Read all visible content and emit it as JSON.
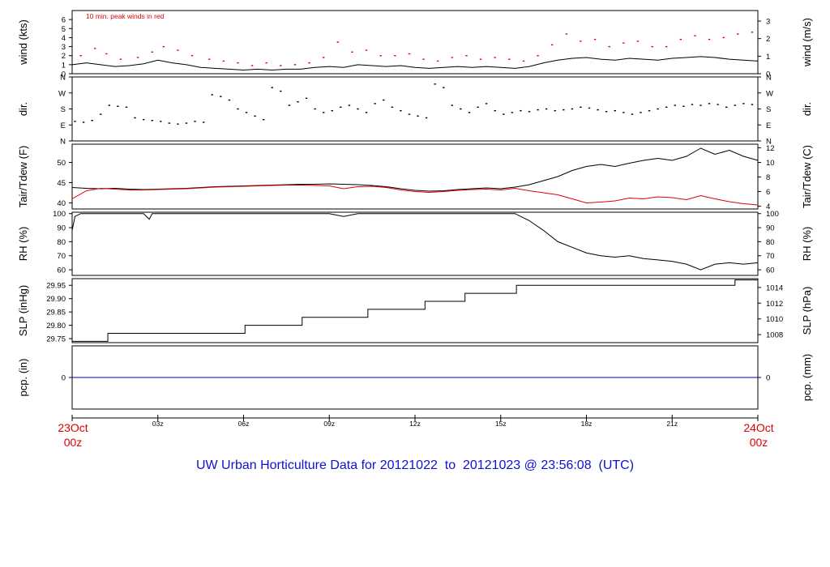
{
  "colors": {
    "frame": "#000000",
    "temp": "#000000",
    "dew": "#e00000",
    "peak": "#e00000",
    "precip": "#0000cc",
    "title": "#1010d0",
    "datelabel": "#e00000"
  },
  "title": {
    "text": "UW Urban Horticulture Data for 20121022  to  20121023 @ 23:56:08  (UTC)"
  },
  "x_axis": {
    "start_label_line1": "23Oct",
    "start_label_line2": "00z",
    "end_label_line1": "24Oct",
    "end_label_line2": "00z",
    "ticks": [
      "03z",
      "06z",
      "09z",
      "12z",
      "15z",
      "18z",
      "21z"
    ],
    "tick_hours": [
      3,
      6,
      9,
      12,
      15,
      18,
      21
    ],
    "range_hours": [
      0,
      24
    ]
  },
  "chart_data": [
    {
      "type": "line",
      "panel": "wind",
      "ylabel_left": "wind (kts)",
      "ylabel_right": "wind (m/s)",
      "annotation": "10 min. peak winds in red",
      "yticks_left": [
        "0",
        "1",
        "2",
        "3",
        "4",
        "5",
        "6"
      ],
      "ytick_values_left": [
        0,
        1,
        2,
        3,
        4,
        5,
        6
      ],
      "yticks_right": [
        "0",
        "1",
        "2",
        "3"
      ],
      "ytick_values_right_in_left_units": [
        0,
        1.94,
        3.89,
        5.83
      ],
      "ylim": [
        0,
        7
      ],
      "series": [
        {
          "style": "line",
          "x": [
            0,
            0.5,
            1,
            1.5,
            2,
            2.5,
            3,
            3.5,
            4,
            4.5,
            5,
            5.5,
            6,
            6.5,
            7,
            7.5,
            8,
            8.5,
            9,
            9.5,
            10,
            10.5,
            11,
            11.5,
            12,
            12.5,
            13,
            13.5,
            14,
            14.5,
            15,
            15.5,
            16,
            16.5,
            17,
            17.5,
            18,
            18.5,
            19,
            19.5,
            20,
            20.5,
            21,
            21.5,
            22,
            22.5,
            23,
            23.5,
            24
          ],
          "values": [
            1.0,
            1.2,
            1.0,
            0.8,
            0.9,
            1.1,
            1.5,
            1.2,
            1.0,
            0.7,
            0.6,
            0.5,
            0.4,
            0.5,
            0.4,
            0.5,
            0.5,
            0.7,
            0.8,
            0.7,
            1.0,
            0.9,
            0.8,
            0.9,
            0.7,
            0.6,
            0.7,
            0.8,
            0.7,
            0.8,
            0.7,
            0.6,
            0.8,
            1.2,
            1.5,
            1.7,
            1.8,
            1.6,
            1.5,
            1.7,
            1.6,
            1.5,
            1.7,
            1.8,
            1.9,
            1.8,
            1.6,
            1.5,
            1.4
          ]
        },
        {
          "style": "dots",
          "x": [
            0.3,
            0.8,
            1.2,
            1.7,
            2.3,
            2.8,
            3.2,
            3.7,
            4.2,
            4.8,
            5.3,
            5.8,
            6.3,
            6.8,
            7.3,
            7.8,
            8.3,
            8.8,
            9.3,
            9.8,
            10.3,
            10.8,
            11.3,
            11.8,
            12.3,
            12.8,
            13.3,
            13.8,
            14.3,
            14.8,
            15.3,
            15.8,
            16.3,
            16.8,
            17.3,
            17.8,
            18.3,
            18.8,
            19.3,
            19.8,
            20.3,
            20.8,
            21.3,
            21.8,
            22.3,
            22.8,
            23.3,
            23.8
          ],
          "values": [
            2.0,
            2.8,
            2.2,
            1.6,
            1.8,
            2.4,
            3.0,
            2.6,
            2.0,
            1.6,
            1.4,
            1.2,
            0.9,
            1.2,
            0.9,
            1.0,
            1.2,
            1.8,
            3.5,
            2.4,
            2.6,
            2.0,
            2.0,
            2.2,
            1.6,
            1.4,
            1.8,
            2.0,
            1.6,
            1.8,
            1.6,
            1.4,
            2.0,
            3.2,
            4.4,
            3.6,
            3.8,
            3.0,
            3.4,
            3.6,
            3.0,
            3.0,
            3.8,
            4.2,
            3.8,
            4.0,
            4.4,
            4.6
          ]
        }
      ]
    },
    {
      "type": "scatter",
      "panel": "direction",
      "ylabel_left": "dir.",
      "ylabel_right": "dir.",
      "yticks_left": [
        "N",
        "E",
        "S",
        "W",
        "N"
      ],
      "ytick_values_left": [
        0,
        90,
        180,
        270,
        360
      ],
      "yticks_right": [
        "N",
        "E",
        "S",
        "W",
        "N"
      ],
      "ylim": [
        0,
        360
      ],
      "x": [
        0.1,
        0.4,
        0.7,
        1.0,
        1.3,
        1.6,
        1.9,
        2.2,
        2.5,
        2.8,
        3.1,
        3.4,
        3.7,
        4.0,
        4.3,
        4.6,
        4.9,
        5.2,
        5.5,
        5.8,
        6.1,
        6.4,
        6.7,
        7.0,
        7.3,
        7.6,
        7.9,
        8.2,
        8.5,
        8.8,
        9.1,
        9.4,
        9.7,
        10.0,
        10.3,
        10.6,
        10.9,
        11.2,
        11.5,
        11.8,
        12.1,
        12.4,
        12.7,
        13.0,
        13.3,
        13.6,
        13.9,
        14.2,
        14.5,
        14.8,
        15.1,
        15.4,
        15.7,
        16.0,
        16.3,
        16.6,
        16.9,
        17.2,
        17.5,
        17.8,
        18.1,
        18.4,
        18.7,
        19.0,
        19.3,
        19.6,
        19.9,
        20.2,
        20.5,
        20.8,
        21.1,
        21.4,
        21.7,
        22.0,
        22.3,
        22.6,
        22.9,
        23.2,
        23.5,
        23.8
      ],
      "values": [
        110,
        105,
        115,
        150,
        200,
        195,
        190,
        130,
        120,
        115,
        110,
        100,
        95,
        100,
        110,
        105,
        260,
        250,
        230,
        180,
        160,
        140,
        120,
        300,
        280,
        200,
        220,
        240,
        180,
        160,
        170,
        190,
        200,
        180,
        160,
        210,
        230,
        190,
        170,
        150,
        140,
        130,
        320,
        300,
        200,
        180,
        160,
        190,
        210,
        170,
        150,
        160,
        170,
        165,
        175,
        180,
        170,
        175,
        180,
        190,
        185,
        175,
        165,
        170,
        160,
        150,
        160,
        170,
        180,
        190,
        200,
        195,
        205,
        200,
        210,
        205,
        190,
        200,
        210,
        205
      ]
    },
    {
      "type": "line",
      "panel": "temperature",
      "ylabel_left": "Tair/Tdew (F)",
      "ylabel_right": "Tair/Tdew (C)",
      "yticks_left": [
        "40",
        "45",
        "50"
      ],
      "ytick_values_left": [
        40,
        45,
        50
      ],
      "yticks_right": [
        "4",
        "6",
        "8",
        "10",
        "12"
      ],
      "ytick_values_right_in_left_units": [
        39.2,
        42.8,
        46.4,
        50.0,
        53.6
      ],
      "ylim": [
        38.5,
        54.5
      ],
      "series": [
        {
          "style": "line",
          "x": [
            0,
            0.5,
            1,
            1.5,
            2,
            2.5,
            3,
            3.5,
            4,
            4.5,
            5,
            5.5,
            6,
            6.5,
            7,
            7.5,
            8,
            8.5,
            9,
            9.5,
            10,
            10.5,
            11,
            11.5,
            12,
            12.5,
            13,
            13.5,
            14,
            14.5,
            15,
            15.5,
            16,
            16.5,
            17,
            17.5,
            18,
            18.5,
            19,
            19.5,
            20,
            20.5,
            21,
            21.5,
            22,
            22.5,
            23,
            23.5,
            24
          ],
          "values": [
            43.8,
            43.6,
            43.5,
            43.6,
            43.4,
            43.3,
            43.4,
            43.5,
            43.6,
            43.8,
            44.0,
            44.1,
            44.2,
            44.3,
            44.4,
            44.5,
            44.6,
            44.6,
            44.7,
            44.6,
            44.5,
            44.3,
            44.0,
            43.5,
            43.1,
            42.9,
            43.0,
            43.3,
            43.5,
            43.7,
            43.5,
            43.9,
            44.5,
            45.5,
            46.5,
            48.0,
            49.0,
            49.5,
            49.0,
            49.8,
            50.5,
            51.0,
            50.5,
            51.5,
            53.5,
            52.0,
            53.0,
            51.5,
            50.5
          ]
        },
        {
          "style": "line",
          "x": [
            0,
            0.5,
            1,
            1.5,
            2,
            2.5,
            3,
            3.5,
            4,
            4.5,
            5,
            5.5,
            6,
            6.5,
            7,
            7.5,
            8,
            8.5,
            9,
            9.5,
            10,
            10.5,
            11,
            11.5,
            12,
            12.5,
            13,
            13.5,
            14,
            14.5,
            15,
            15.5,
            16,
            16.5,
            17,
            17.5,
            18,
            18.5,
            19,
            19.5,
            20,
            20.5,
            21,
            21.5,
            22,
            22.5,
            23,
            23.5,
            24
          ],
          "values": [
            41.0,
            43.0,
            43.6,
            43.4,
            43.2,
            43.2,
            43.3,
            43.4,
            43.5,
            43.7,
            43.9,
            44.0,
            44.1,
            44.2,
            44.3,
            44.4,
            44.4,
            44.3,
            44.2,
            43.5,
            44.0,
            44.1,
            43.8,
            43.2,
            42.8,
            42.6,
            42.8,
            43.1,
            43.3,
            43.4,
            43.2,
            43.6,
            43.0,
            42.5,
            42.0,
            41.0,
            40.0,
            40.2,
            40.5,
            41.2,
            41.0,
            41.5,
            41.3,
            40.8,
            41.8,
            41.0,
            40.3,
            39.8,
            39.5
          ]
        }
      ]
    },
    {
      "type": "line",
      "panel": "humidity",
      "ylabel_left": "RH (%)",
      "ylabel_right": "RH (%)",
      "yticks_left": [
        "60",
        "70",
        "80",
        "90",
        "100"
      ],
      "ytick_values_left": [
        60,
        70,
        80,
        90,
        100
      ],
      "yticks_right": [
        "60",
        "70",
        "80",
        "90",
        "100"
      ],
      "ylim": [
        56,
        101
      ],
      "series": [
        {
          "style": "line",
          "x": [
            0,
            0.1,
            0.3,
            0.5,
            1,
            1.5,
            2,
            2.5,
            2.7,
            2.8,
            3,
            4,
            5,
            6,
            7,
            8,
            9,
            9.5,
            10,
            10.5,
            11,
            12,
            13,
            14,
            15,
            15.5,
            16,
            16.5,
            17,
            17.5,
            18,
            18.5,
            19,
            19.5,
            20,
            20.5,
            21,
            21.5,
            22,
            22.5,
            23,
            23.5,
            24
          ],
          "values": [
            88,
            98,
            100,
            100,
            100,
            100,
            100,
            100,
            96,
            100,
            100,
            100,
            100,
            100,
            100,
            100,
            100,
            98,
            100,
            100,
            100,
            100,
            100,
            100,
            100,
            100,
            95,
            88,
            80,
            76,
            72,
            70,
            69,
            70,
            68,
            67,
            66,
            64,
            60,
            64,
            65,
            64,
            65
          ]
        }
      ]
    },
    {
      "type": "line",
      "panel": "pressure",
      "ylabel_left": "SLP (inHg)",
      "ylabel_right": "SLP (hPa)",
      "yticks_left": [
        "29.75",
        "29.80",
        "29.85",
        "29.90",
        "29.95"
      ],
      "ytick_values_left": [
        29.75,
        29.8,
        29.85,
        29.9,
        29.95
      ],
      "yticks_right": [
        "1008",
        "1010",
        "1012",
        "1014"
      ],
      "ytick_values_right_in_left_units": [
        29.765,
        29.824,
        29.883,
        29.942
      ],
      "ylim": [
        29.735,
        29.975
      ],
      "series": [
        {
          "style": "step",
          "x": [
            0,
            1.25,
            6.05,
            8.05,
            10.35,
            12.35,
            13.75,
            15.55,
            23.2,
            24
          ],
          "values": [
            29.74,
            29.77,
            29.8,
            29.83,
            29.86,
            29.89,
            29.92,
            29.95,
            29.97,
            29.97
          ]
        }
      ]
    },
    {
      "type": "line",
      "panel": "precipitation",
      "ylabel_left": "pcp. (in)",
      "ylabel_right": "pcp. (mm)",
      "yticks_left": [
        "0"
      ],
      "ytick_values_left": [
        0
      ],
      "yticks_right": [
        "0"
      ],
      "ylim": [
        -1,
        1
      ],
      "series": [
        {
          "style": "line",
          "x": [
            0,
            24
          ],
          "values": [
            0,
            0
          ]
        }
      ]
    }
  ]
}
